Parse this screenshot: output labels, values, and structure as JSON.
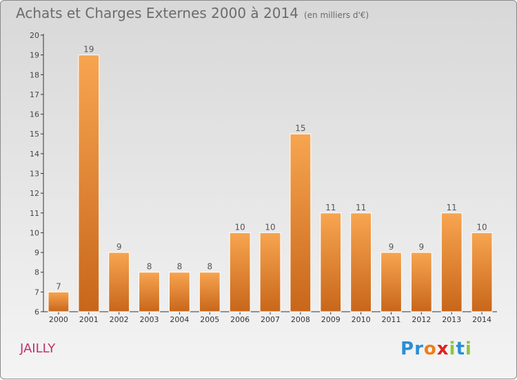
{
  "title": "Achats et Charges Externes 2000 à 2014",
  "subtitle": "(en milliers d'€)",
  "city": "JAILLY",
  "logo": {
    "letters": [
      "P",
      "r",
      "o",
      "x",
      "i",
      "t",
      "i"
    ],
    "colors": [
      "#2a8fd6",
      "#2a8fd6",
      "#f07d1a",
      "#e02020",
      "#8cc63f",
      "#2a8fd6",
      "#8cc63f"
    ]
  },
  "colors": {
    "bar": "#f0963c",
    "bar_dark": "#c8661a",
    "axis": "#333333"
  },
  "chart_data": {
    "type": "bar",
    "title": "Achats et Charges Externes 2000 à 2014",
    "categories": [
      "2000",
      "2001",
      "2002",
      "2003",
      "2004",
      "2005",
      "2006",
      "2007",
      "2008",
      "2009",
      "2010",
      "2011",
      "2012",
      "2013",
      "2014"
    ],
    "values": [
      7,
      19,
      9,
      8,
      8,
      8,
      10,
      10,
      15,
      11,
      11,
      9,
      9,
      11,
      10
    ],
    "ylim": [
      6,
      20
    ],
    "yticks": [
      6,
      7,
      8,
      9,
      10,
      11,
      12,
      13,
      14,
      15,
      16,
      17,
      18,
      19,
      20
    ],
    "grid": false,
    "legend": "none"
  }
}
